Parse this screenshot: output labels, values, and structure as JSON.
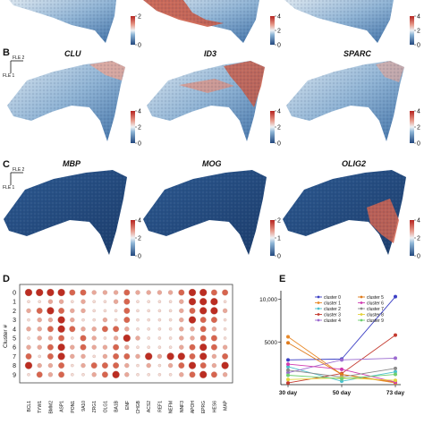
{
  "panel_b_letter": "B",
  "panel_c_letter": "C",
  "panel_d_letter": "D",
  "panel_e_letter": "E",
  "fle_x_label": "FLE 2",
  "fle_y_label": "FLE 1",
  "row_a_colorbars": [
    {
      "ticks": [
        "2",
        "0"
      ]
    },
    {
      "ticks": [
        "4",
        "2",
        "0"
      ]
    },
    {
      "ticks": [
        "4",
        "2",
        "0"
      ]
    }
  ],
  "row_b": {
    "genes": [
      "CLU",
      "ID3",
      "SPARC"
    ],
    "colorbars": [
      {
        "ticks": [
          "4",
          "2",
          "0"
        ]
      },
      {
        "ticks": [
          "4",
          "2",
          "0"
        ]
      },
      {
        "ticks": [
          "4",
          "2",
          "0"
        ]
      }
    ]
  },
  "row_c": {
    "genes": [
      "MBP",
      "MOG",
      "OLIG2"
    ],
    "colorbars": [
      {
        "ticks": [
          "4",
          "2",
          "0"
        ]
      },
      {
        "ticks": [
          "2",
          "1",
          "0"
        ]
      },
      {
        "ticks": [
          "4",
          "2",
          "0"
        ]
      }
    ]
  },
  "colors": {
    "low": "#23487e",
    "mid": "#c7dbea",
    "high": "#b5231f"
  },
  "chart_data": [
    {
      "type": "scatter",
      "panel": "D",
      "ylabel": "Cluster #",
      "clusters": [
        "0",
        "1",
        "2",
        "3",
        "4",
        "5",
        "6",
        "7",
        "8",
        "9"
      ],
      "genes": [
        "BCL1",
        "TYW1",
        "BMM2",
        "ASP1",
        "PON1",
        "9A10",
        "ZRG1",
        "OLG1",
        "BA1B",
        "ENF",
        "CHGB",
        "ACS2",
        "REF1",
        "NEFM",
        "NNF3",
        "APOH",
        "EPRG",
        "HES6",
        "MAP"
      ],
      "expression": [
        [
          3,
          3,
          3,
          3,
          2,
          2,
          1,
          1,
          1,
          2,
          1,
          1,
          1,
          1,
          2,
          3,
          3,
          2,
          2
        ],
        [
          0,
          0,
          1,
          1,
          0,
          1,
          0,
          0,
          1,
          2,
          0,
          0,
          0,
          0,
          1,
          3,
          3,
          3,
          0
        ],
        [
          1,
          2,
          3,
          2,
          1,
          1,
          0,
          0,
          0,
          2,
          0,
          0,
          0,
          0,
          1,
          2,
          3,
          3,
          1
        ],
        [
          0,
          1,
          1,
          3,
          1,
          0,
          0,
          1,
          0,
          2,
          0,
          0,
          0,
          0,
          1,
          3,
          2,
          2,
          0
        ],
        [
          1,
          1,
          2,
          3,
          2,
          1,
          1,
          2,
          2,
          1,
          0,
          0,
          0,
          0,
          1,
          1,
          2,
          1,
          0
        ],
        [
          0,
          1,
          1,
          2,
          0,
          2,
          1,
          0,
          1,
          3,
          1,
          0,
          0,
          0,
          1,
          1,
          2,
          2,
          0
        ],
        [
          1,
          1,
          2,
          3,
          1,
          2,
          1,
          1,
          2,
          1,
          0,
          0,
          0,
          0,
          1,
          2,
          3,
          2,
          1
        ],
        [
          2,
          0,
          2,
          3,
          1,
          1,
          0,
          1,
          2,
          2,
          1,
          3,
          1,
          3,
          3,
          2,
          3,
          1,
          2
        ],
        [
          3,
          1,
          1,
          2,
          0,
          1,
          2,
          2,
          2,
          1,
          0,
          1,
          0,
          1,
          2,
          3,
          2,
          1,
          3
        ],
        [
          0,
          2,
          1,
          2,
          0,
          0,
          1,
          2,
          3,
          1,
          0,
          0,
          0,
          0,
          1,
          2,
          3,
          2,
          1
        ]
      ]
    },
    {
      "type": "line",
      "panel": "E",
      "x": [
        "30 day",
        "50 day",
        "73 day"
      ],
      "yticks": [
        5000,
        10000
      ],
      "ytick_labels": [
        "5000",
        "10,000"
      ],
      "ylim": [
        0,
        11000
      ],
      "legend_position": "right",
      "series": [
        {
          "name": "cluster 0",
          "values": [
            2900,
            3000,
            10300
          ],
          "color": "#3b3fc4"
        },
        {
          "name": "cluster 1",
          "values": [
            5600,
            1200,
            200
          ],
          "color": "#e88a2a"
        },
        {
          "name": "cluster 2",
          "values": [
            2100,
            400,
            1500
          ],
          "color": "#4cc1cc"
        },
        {
          "name": "cluster 3",
          "values": [
            200,
            1300,
            5800
          ],
          "color": "#c43a2f"
        },
        {
          "name": "cluster 4",
          "values": [
            1400,
            2900,
            3100
          ],
          "color": "#9b6ad0"
        },
        {
          "name": "cluster 5",
          "values": [
            4900,
            1200,
            300
          ],
          "color": "#e07b1c"
        },
        {
          "name": "cluster 6",
          "values": [
            2400,
            1800,
            300
          ],
          "color": "#d03bb0"
        },
        {
          "name": "cluster 7",
          "values": [
            1700,
            900,
            1900
          ],
          "color": "#8a8a8a"
        },
        {
          "name": "cluster 8",
          "values": [
            600,
            800,
            500
          ],
          "color": "#e5d23a"
        },
        {
          "name": "cluster 9",
          "values": [
            1100,
            700,
            1200
          ],
          "color": "#6fcf6f"
        }
      ]
    }
  ]
}
